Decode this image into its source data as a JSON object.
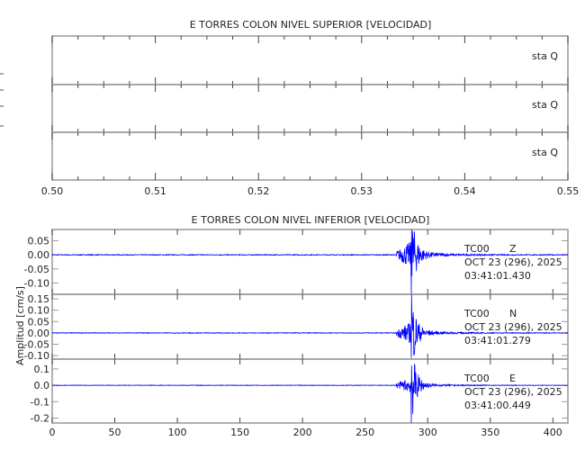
{
  "chart_data": [
    {
      "type": "line",
      "title": "E TORRES COLON NIVEL SUPERIOR [VELOCIDAD]",
      "xlim": [
        0.5,
        0.55
      ],
      "x_ticks": [
        "0.50",
        "0.51",
        "0.52",
        "0.53",
        "0.54",
        "0.55"
      ],
      "panels": [
        {
          "label": "sta   Q"
        },
        {
          "label": "sta   Q"
        },
        {
          "label": "sta   Q"
        }
      ]
    },
    {
      "type": "line",
      "title": "E TORRES COLON NIVEL INFERIOR [VELOCIDAD]",
      "ylabel": "Amplitud  [cm/s]",
      "xlim": [
        0,
        412
      ],
      "x_ticks": [
        "0",
        "50",
        "100",
        "150",
        "200",
        "250",
        "300",
        "350",
        "400"
      ],
      "panels": [
        {
          "station": "TC00",
          "component": "Z",
          "date": "OCT 23 (296), 2025",
          "time": "03:41:01.430",
          "ylim": [
            -0.14,
            0.09
          ],
          "y_ticks": [
            0.05,
            0.0,
            -0.05,
            -0.1
          ],
          "y_tick_labels": [
            "0.05",
            "0.00",
            "-0.05",
            "-0.10"
          ],
          "onset_s": 275,
          "peak_s": 287,
          "peak_amplitude": [
            0.09,
            -0.14
          ]
        },
        {
          "station": "TC00",
          "component": "N",
          "date": "OCT 23 (296), 2025",
          "time": "03:41:01.279",
          "ylim": [
            -0.115,
            0.17
          ],
          "y_ticks": [
            0.15,
            0.1,
            0.05,
            0.0,
            -0.05,
            -0.1
          ],
          "y_tick_labels": [
            "0.15",
            "0.10",
            "0.05",
            "0.00",
            "-0.05",
            "-0.10"
          ],
          "onset_s": 275,
          "peak_s": 287,
          "peak_amplitude": [
            0.17,
            -0.11
          ]
        },
        {
          "station": "TC00",
          "component": "E",
          "date": "OCT 23 (296), 2025",
          "time": "03:41:00.449",
          "ylim": [
            -0.23,
            0.16
          ],
          "y_ticks": [
            0.1,
            0.0,
            -0.1,
            -0.2
          ],
          "y_tick_labels": [
            "0.1",
            "0.0",
            "-0.1",
            "-0.2"
          ],
          "onset_s": 275,
          "peak_s": 287,
          "peak_amplitude": [
            0.12,
            -0.23
          ]
        }
      ]
    }
  ],
  "colors": {
    "trace": "#0000ff",
    "axis": "#999999",
    "text": "#222222"
  }
}
